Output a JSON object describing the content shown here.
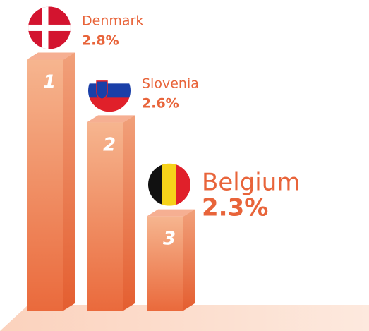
{
  "chart_data": {
    "type": "bar",
    "categories": [
      "Denmark",
      "Slovenia",
      "Belgium"
    ],
    "values": [
      2.8,
      2.6,
      2.3
    ],
    "value_labels": [
      "2.8%",
      "2.6%",
      "2.3%"
    ],
    "ranks": [
      1,
      2,
      3
    ],
    "color": "#f07a4a",
    "ylim": [
      2.0,
      2.9
    ]
  }
}
